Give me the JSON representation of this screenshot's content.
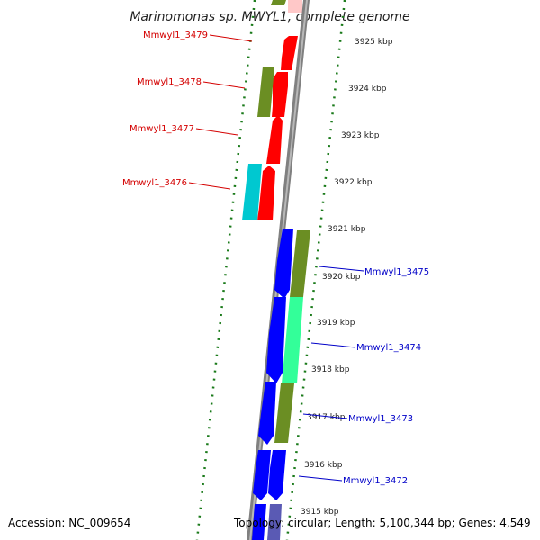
{
  "title": "Marinomonas sp. MWYL1, complete genome",
  "accession": "Accession: NC_009654",
  "topology": "Topology: circular; Length: 5,100,344 bp; Genes: 4,549",
  "colors": {
    "red": "#ff0000",
    "blue": "#0000ff",
    "olive": "#6b8e23",
    "cyan": "#00c8d0",
    "spring": "#33ff99",
    "pink": "#ffc8c8",
    "backbone": "#808080",
    "tick": "#1a7a1a",
    "label_red": "#d40000",
    "label_blue": "#0000c8"
  },
  "kbp_labels": [
    "3925 kbp",
    "3924 kbp",
    "3923 kbp",
    "3922 kbp",
    "3921 kbp",
    "3920 kbp",
    "3919 kbp",
    "3918 kbp",
    "3917 kbp",
    "3916 kbp",
    "3915 kbp"
  ],
  "genes_left": [
    "Mmwyl1_3479",
    "Mmwyl1_3478",
    "Mmwyl1_3477",
    "Mmwyl1_3476"
  ],
  "genes_right": [
    "Mmwyl1_3475",
    "Mmwyl1_3474",
    "Mmwyl1_3473",
    "Mmwyl1_3472"
  ]
}
